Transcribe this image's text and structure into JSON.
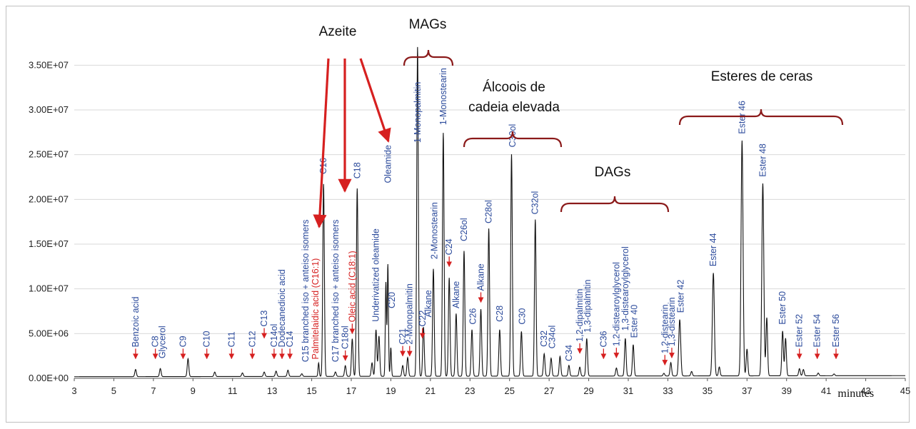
{
  "chart_data": {
    "type": "line",
    "xlabel": "minutes",
    "ylabel": "",
    "xlim": [
      3,
      45
    ],
    "ylim": [
      0,
      37500000
    ],
    "x_ticks": [
      "3",
      "5",
      "7",
      "9",
      "11",
      "13",
      "15",
      "17",
      "19",
      "21",
      "23",
      "25",
      "27",
      "29",
      "31",
      "33",
      "35",
      "37",
      "39",
      "41",
      "43",
      "45"
    ],
    "y_ticks": [
      "0.00E+00",
      "5.00E+06",
      "1.00E+07",
      "1.50E+07",
      "2.00E+07",
      "2.50E+07",
      "3.00E+07",
      "3.50E+07"
    ],
    "y_tick_values": [
      0,
      5000000,
      10000000,
      15000000,
      20000000,
      25000000,
      30000000,
      35000000
    ],
    "grid": true,
    "line_color": "#111111",
    "baseline": 300000,
    "peaks": [
      {
        "x": 6.1,
        "y": 800000,
        "w": 0.04
      },
      {
        "x": 7.35,
        "y": 900000,
        "w": 0.04
      },
      {
        "x": 8.75,
        "y": 2000000,
        "w": 0.04
      },
      {
        "x": 10.1,
        "y": 500000,
        "w": 0.04
      },
      {
        "x": 11.5,
        "y": 400000,
        "w": 0.04
      },
      {
        "x": 12.6,
        "y": 500000,
        "w": 0.04
      },
      {
        "x": 13.2,
        "y": 600000,
        "w": 0.04
      },
      {
        "x": 13.8,
        "y": 700000,
        "w": 0.04
      },
      {
        "x": 14.5,
        "y": 300000,
        "w": 0.04
      },
      {
        "x": 15.35,
        "y": 1500000,
        "w": 0.03
      },
      {
        "x": 15.6,
        "y": 21500000,
        "w": 0.04
      },
      {
        "x": 16.2,
        "y": 500000,
        "w": 0.04
      },
      {
        "x": 16.7,
        "y": 1200000,
        "w": 0.04
      },
      {
        "x": 17.05,
        "y": 4200000,
        "w": 0.04
      },
      {
        "x": 17.3,
        "y": 21000000,
        "w": 0.04
      },
      {
        "x": 18.05,
        "y": 1500000,
        "w": 0.04
      },
      {
        "x": 18.25,
        "y": 5200000,
        "w": 0.04
      },
      {
        "x": 18.4,
        "y": 4500000,
        "w": 0.04
      },
      {
        "x": 18.75,
        "y": 10500000,
        "w": 0.03
      },
      {
        "x": 18.85,
        "y": 12500000,
        "w": 0.03
      },
      {
        "x": 19.0,
        "y": 3200000,
        "w": 0.03
      },
      {
        "x": 19.6,
        "y": 1200000,
        "w": 0.04
      },
      {
        "x": 19.85,
        "y": 2100000,
        "w": 0.04
      },
      {
        "x": 20.35,
        "y": 36800000,
        "w": 0.04
      },
      {
        "x": 20.65,
        "y": 5500000,
        "w": 0.04
      },
      {
        "x": 21.15,
        "y": 12000000,
        "w": 0.04
      },
      {
        "x": 21.65,
        "y": 27200000,
        "w": 0.04
      },
      {
        "x": 21.95,
        "y": 11000000,
        "w": 0.04
      },
      {
        "x": 22.3,
        "y": 7000000,
        "w": 0.04
      },
      {
        "x": 22.7,
        "y": 14000000,
        "w": 0.04
      },
      {
        "x": 23.1,
        "y": 5200000,
        "w": 0.04
      },
      {
        "x": 23.55,
        "y": 7500000,
        "w": 0.04
      },
      {
        "x": 23.95,
        "y": 16500000,
        "w": 0.04
      },
      {
        "x": 24.5,
        "y": 5200000,
        "w": 0.04
      },
      {
        "x": 25.1,
        "y": 24800000,
        "w": 0.04
      },
      {
        "x": 25.6,
        "y": 5000000,
        "w": 0.04
      },
      {
        "x": 26.3,
        "y": 17500000,
        "w": 0.04
      },
      {
        "x": 26.75,
        "y": 2500000,
        "w": 0.04
      },
      {
        "x": 27.1,
        "y": 2000000,
        "w": 0.04
      },
      {
        "x": 27.55,
        "y": 2200000,
        "w": 0.04
      },
      {
        "x": 28.0,
        "y": 1200000,
        "w": 0.04
      },
      {
        "x": 28.55,
        "y": 1000000,
        "w": 0.04
      },
      {
        "x": 28.9,
        "y": 4200000,
        "w": 0.04
      },
      {
        "x": 30.4,
        "y": 900000,
        "w": 0.04
      },
      {
        "x": 30.85,
        "y": 4200000,
        "w": 0.04
      },
      {
        "x": 31.25,
        "y": 3500000,
        "w": 0.04
      },
      {
        "x": 32.8,
        "y": 300000,
        "w": 0.04
      },
      {
        "x": 33.15,
        "y": 1500000,
        "w": 0.04
      },
      {
        "x": 33.6,
        "y": 6300000,
        "w": 0.05
      },
      {
        "x": 34.2,
        "y": 500000,
        "w": 0.04
      },
      {
        "x": 35.3,
        "y": 11500000,
        "w": 0.05
      },
      {
        "x": 35.6,
        "y": 1000000,
        "w": 0.04
      },
      {
        "x": 36.75,
        "y": 26300000,
        "w": 0.05
      },
      {
        "x": 37.0,
        "y": 3000000,
        "w": 0.04
      },
      {
        "x": 37.8,
        "y": 21500000,
        "w": 0.05
      },
      {
        "x": 38.0,
        "y": 6500000,
        "w": 0.04
      },
      {
        "x": 38.8,
        "y": 5000000,
        "w": 0.04
      },
      {
        "x": 38.95,
        "y": 4200000,
        "w": 0.04
      },
      {
        "x": 39.65,
        "y": 800000,
        "w": 0.04
      },
      {
        "x": 39.85,
        "y": 700000,
        "w": 0.04
      },
      {
        "x": 40.6,
        "y": 300000,
        "w": 0.04
      },
      {
        "x": 41.4,
        "y": 200000,
        "w": 0.04
      }
    ],
    "labels": [
      {
        "text": "Benzoic acid",
        "x": 6.1,
        "y": 2200000,
        "color": "#2b4a9b",
        "arrow": true
      },
      {
        "text": "C8",
        "x": 7.1,
        "y": 2200000,
        "color": "#2b4a9b",
        "arrow": true
      },
      {
        "text": "Glycerol",
        "x": 7.45,
        "y": 1900000,
        "color": "#2b4a9b",
        "arrow": false
      },
      {
        "text": "C9",
        "x": 8.5,
        "y": 2200000,
        "color": "#2b4a9b",
        "arrow": true
      },
      {
        "text": "C10",
        "x": 9.7,
        "y": 2200000,
        "color": "#2b4a9b",
        "arrow": true
      },
      {
        "text": "C11",
        "x": 10.95,
        "y": 2200000,
        "color": "#2b4a9b",
        "arrow": true
      },
      {
        "text": "C12",
        "x": 12.0,
        "y": 2200000,
        "color": "#2b4a9b",
        "arrow": true
      },
      {
        "text": "C13",
        "x": 12.6,
        "y": 4500000,
        "color": "#2b4a9b",
        "arrow": true
      },
      {
        "text": "C14ol",
        "x": 13.1,
        "y": 2200000,
        "color": "#2b4a9b",
        "arrow": true
      },
      {
        "text": "Dodecanedioic acid",
        "x": 13.5,
        "y": 2200000,
        "color": "#2b4a9b",
        "arrow": true
      },
      {
        "text": "C14",
        "x": 13.9,
        "y": 2200000,
        "color": "#2b4a9b",
        "arrow": true
      },
      {
        "text": "C15 branched iso + anteiso isomers",
        "x": 14.7,
        "y": 1500000,
        "color": "#2b4a9b",
        "arrow": false
      },
      {
        "text": "Palmitelaidic acid (C16:1)",
        "x": 15.2,
        "y": 1800000,
        "color": "#d62020",
        "arrow": false
      },
      {
        "text": "C16",
        "x": 15.6,
        "y": 22500000,
        "color": "#2b4a9b",
        "arrow": false
      },
      {
        "text": "C17 branched iso + anteiso isomers",
        "x": 16.2,
        "y": 1500000,
        "color": "#2b4a9b",
        "arrow": false
      },
      {
        "text": "C18ol",
        "x": 16.7,
        "y": 2000000,
        "color": "#2b4a9b",
        "arrow": true
      },
      {
        "text": "Oleic acid (C18:1)",
        "x": 17.05,
        "y": 5000000,
        "color": "#d62020",
        "arrow": true
      },
      {
        "text": "C18",
        "x": 17.3,
        "y": 22000000,
        "color": "#2b4a9b",
        "arrow": false
      },
      {
        "text": "Underivatized oleamide",
        "x": 18.25,
        "y": 6000000,
        "color": "#2b4a9b",
        "arrow": false
      },
      {
        "text": "Oleamide",
        "x": 18.85,
        "y": 21500000,
        "color": "#2b4a9b",
        "arrow": false
      },
      {
        "text": "C20",
        "x": 19.05,
        "y": 7500000,
        "color": "#2b4a9b",
        "arrow": false
      },
      {
        "text": "C21",
        "x": 19.6,
        "y": 2500000,
        "color": "#2b4a9b",
        "arrow": true
      },
      {
        "text": "2-Monopalmitin",
        "x": 19.95,
        "y": 2500000,
        "color": "#2b4a9b",
        "arrow": true
      },
      {
        "text": "1-Monopalmitin",
        "x": 20.35,
        "y": 26000000,
        "color": "#2b4a9b",
        "arrow": false
      },
      {
        "text": "C22",
        "x": 20.6,
        "y": 4500000,
        "color": "#2b4a9b",
        "arrow": true
      },
      {
        "text": "Alkane",
        "x": 20.9,
        "y": 6500000,
        "color": "#2b4a9b",
        "arrow": false
      },
      {
        "text": "2-Monostearin",
        "x": 21.2,
        "y": 13000000,
        "color": "#2b4a9b",
        "arrow": false
      },
      {
        "text": "1-Monostearin",
        "x": 21.65,
        "y": 28000000,
        "color": "#2b4a9b",
        "arrow": false
      },
      {
        "text": "C24",
        "x": 21.95,
        "y": 12500000,
        "color": "#2b4a9b",
        "arrow": true
      },
      {
        "text": "Alkane",
        "x": 22.3,
        "y": 7500000,
        "color": "#2b4a9b",
        "arrow": false
      },
      {
        "text": "C26ol",
        "x": 22.7,
        "y": 15000000,
        "color": "#2b4a9b",
        "arrow": false
      },
      {
        "text": "C26",
        "x": 23.15,
        "y": 5700000,
        "color": "#2b4a9b",
        "arrow": false
      },
      {
        "text": "Alkane",
        "x": 23.55,
        "y": 8500000,
        "color": "#2b4a9b",
        "arrow": true
      },
      {
        "text": "C28ol",
        "x": 23.95,
        "y": 17000000,
        "color": "#2b4a9b",
        "arrow": false
      },
      {
        "text": "C28",
        "x": 24.5,
        "y": 6000000,
        "color": "#2b4a9b",
        "arrow": false
      },
      {
        "text": "C30ol",
        "x": 25.15,
        "y": 25500000,
        "color": "#2b4a9b",
        "arrow": false
      },
      {
        "text": "C30",
        "x": 25.65,
        "y": 5700000,
        "color": "#2b4a9b",
        "arrow": false
      },
      {
        "text": "C32ol",
        "x": 26.3,
        "y": 18000000,
        "color": "#2b4a9b",
        "arrow": false
      },
      {
        "text": "C32",
        "x": 26.75,
        "y": 3200000,
        "color": "#2b4a9b",
        "arrow": false
      },
      {
        "text": "C34ol",
        "x": 27.15,
        "y": 3000000,
        "color": "#2b4a9b",
        "arrow": false
      },
      {
        "text": "C34",
        "x": 28.0,
        "y": 1600000,
        "color": "#2b4a9b",
        "arrow": false
      },
      {
        "text": "1,2-dipalmitin",
        "x": 28.55,
        "y": 2800000,
        "color": "#2b4a9b",
        "arrow": true
      },
      {
        "text": "1,3-dipalmitin",
        "x": 28.95,
        "y": 4800000,
        "color": "#2b4a9b",
        "arrow": false
      },
      {
        "text": "C36",
        "x": 29.75,
        "y": 2200000,
        "color": "#2b4a9b",
        "arrow": true
      },
      {
        "text": "1,2-distearoylglycerol",
        "x": 30.4,
        "y": 2300000,
        "color": "#2b4a9b",
        "arrow": true
      },
      {
        "text": "1,3-distearoylglycerol",
        "x": 30.85,
        "y": 5000000,
        "color": "#2b4a9b",
        "arrow": false
      },
      {
        "text": "Ester 40",
        "x": 31.3,
        "y": 4200000,
        "color": "#2b4a9b",
        "arrow": false
      },
      {
        "text": "1,2-distearin",
        "x": 32.85,
        "y": 1500000,
        "color": "#2b4a9b",
        "arrow": true
      },
      {
        "text": "1,3-distearin",
        "x": 33.2,
        "y": 2300000,
        "color": "#2b4a9b",
        "arrow": true
      },
      {
        "text": "Ester 42",
        "x": 33.65,
        "y": 7000000,
        "color": "#2b4a9b",
        "arrow": false
      },
      {
        "text": "Ester 44",
        "x": 35.3,
        "y": 12200000,
        "color": "#2b4a9b",
        "arrow": false
      },
      {
        "text": "Ester 46",
        "x": 36.75,
        "y": 27000000,
        "color": "#2b4a9b",
        "arrow": false
      },
      {
        "text": "Ester 48",
        "x": 37.8,
        "y": 22200000,
        "color": "#2b4a9b",
        "arrow": false
      },
      {
        "text": "Ester 50",
        "x": 38.8,
        "y": 5700000,
        "color": "#2b4a9b",
        "arrow": false
      },
      {
        "text": "Ester 52",
        "x": 39.65,
        "y": 2200000,
        "color": "#2b4a9b",
        "arrow": true
      },
      {
        "text": "Ester 54",
        "x": 40.55,
        "y": 2200000,
        "color": "#2b4a9b",
        "arrow": true
      },
      {
        "text": "Ester 56",
        "x": 41.5,
        "y": 2200000,
        "color": "#2b4a9b",
        "arrow": true
      }
    ],
    "groups": [
      {
        "text": "Azeite",
        "lines": [
          "Azeite"
        ],
        "color": "#8b1a1a"
      },
      {
        "text": "MAGs",
        "lines": [
          "MAGs"
        ],
        "color": "#8b1a1a"
      },
      {
        "text": "Álcoois de cadeia elevada",
        "lines": [
          "Álcoois de",
          "cadeia elevada"
        ],
        "color": "#8b1a1a"
      },
      {
        "text": "DAGs",
        "lines": [
          "DAGs"
        ],
        "color": "#8b1a1a"
      },
      {
        "text": "Esteres de ceras",
        "lines": [
          "Esteres de ceras"
        ],
        "color": "#8b1a1a"
      }
    ],
    "annotation_colors": {
      "label": "#2b4a9b",
      "highlight": "#d62020",
      "group": "#8b1a1a"
    }
  }
}
